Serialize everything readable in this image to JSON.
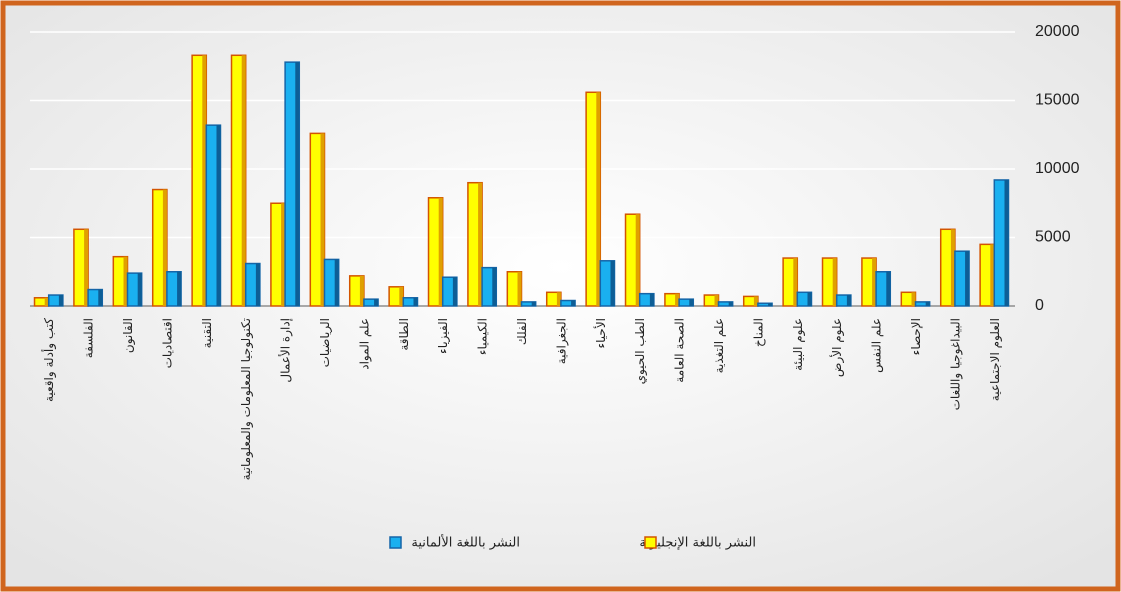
{
  "chart_data": {
    "type": "bar",
    "categories": [
      "كتب وأدلة واقعية",
      "الفلسفة",
      "القانون",
      "اقتصاديات",
      "التقنية",
      "تكنولوجيا المعلومات والمعلوماتية",
      "إدارة الأعمال",
      "الرياضيات",
      "علم المواد",
      "الطاقة",
      "الفيزياء",
      "الكيمياء",
      "الفلك",
      "الجغرافية",
      "الأحياء",
      "الطب الحيوي",
      "الصحة العامة",
      "علم التغذية",
      "المناخ",
      "علوم البيئة",
      "علوم الأرض",
      "علم النفس",
      "الإحصاء",
      "البيداغوجيا واللغات",
      "العلوم الاجتماعية"
    ],
    "series": [
      {
        "name": "النشر باللغة الإنجليزية",
        "color": "#ffff00",
        "values": [
          600,
          5600,
          3600,
          8500,
          18300,
          18300,
          7500,
          12600,
          2200,
          1400,
          7900,
          9000,
          2500,
          1000,
          15600,
          6700,
          900,
          800,
          700,
          3500,
          3500,
          3500,
          1000,
          5600,
          4500
        ]
      },
      {
        "name": "النشر باللغة الألمانية",
        "color": "#1ab0f0",
        "values": [
          800,
          1200,
          2400,
          2500,
          13200,
          3100,
          17800,
          3400,
          500,
          600,
          2100,
          2800,
          300,
          400,
          3300,
          900,
          500,
          300,
          200,
          1000,
          800,
          2500,
          300,
          4000,
          9200
        ]
      }
    ],
    "ylim": [
      0,
      20000
    ],
    "yticks": [
      0,
      5000,
      10000,
      15000,
      20000
    ],
    "y_axis_position": "right",
    "grid": true
  }
}
